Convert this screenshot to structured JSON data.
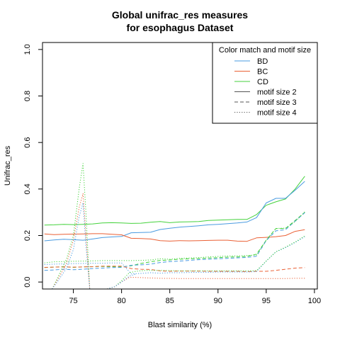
{
  "chart_data": {
    "type": "line",
    "title": [
      "Global unifrac_res measures",
      "for esophagus Dataset"
    ],
    "xlabel": "Blast similarity (%)",
    "ylabel": "Unifrac_res",
    "xlim": [
      71.8,
      100.3
    ],
    "ylim": [
      -0.03,
      1.03
    ],
    "xticks": [
      75,
      80,
      85,
      90,
      95,
      100
    ],
    "yticks": [
      0.0,
      0.2,
      0.4,
      0.6,
      0.8,
      1.0
    ],
    "xtick_labels": [
      "75",
      "80",
      "85",
      "90",
      "95",
      "100"
    ],
    "ytick_labels": [
      "0.0",
      "0.2",
      "0.4",
      "0.6",
      "0.8",
      "1.0"
    ],
    "grid": false,
    "legend": {
      "placement": "top-right",
      "title": "Color match and motif size",
      "entries": [
        {
          "label": "BD",
          "color": "#4a9be0",
          "dash": "solid"
        },
        {
          "label": "BC",
          "color": "#ea6035",
          "dash": "solid"
        },
        {
          "label": "CD",
          "color": "#44d23c",
          "dash": "solid"
        },
        {
          "label": "motif size 2",
          "color": "#555555",
          "dash": "solid"
        },
        {
          "label": "motif size 3",
          "color": "#555555",
          "dash": "dashed"
        },
        {
          "label": "motif size 4",
          "color": "#555555",
          "dash": "dotted"
        }
      ]
    },
    "series": [
      {
        "color": "#44d23c",
        "dash": "solid",
        "x": [
          72,
          73,
          74,
          75,
          76,
          77,
          78,
          79,
          80,
          81,
          82,
          83,
          84,
          85,
          86,
          87,
          88,
          89,
          90,
          91,
          92,
          93,
          94,
          95,
          96,
          97,
          98,
          99
        ],
        "values": [
          0.245,
          0.246,
          0.248,
          0.247,
          0.248,
          0.25,
          0.254,
          0.255,
          0.254,
          0.252,
          0.253,
          0.257,
          0.26,
          0.255,
          0.258,
          0.259,
          0.26,
          0.265,
          0.266,
          0.268,
          0.269,
          0.269,
          0.29,
          0.33,
          0.345,
          0.357,
          0.4,
          0.455
        ]
      },
      {
        "color": "#4a9be0",
        "dash": "solid",
        "x": [
          72,
          73,
          74,
          75,
          76,
          77,
          78,
          79,
          80,
          81,
          82,
          83,
          84,
          85,
          86,
          87,
          88,
          89,
          90,
          91,
          92,
          93,
          94,
          95,
          96,
          97,
          98,
          99
        ],
        "values": [
          0.177,
          0.181,
          0.184,
          0.182,
          0.18,
          0.185,
          0.191,
          0.194,
          0.196,
          0.212,
          0.213,
          0.214,
          0.226,
          0.231,
          0.236,
          0.239,
          0.242,
          0.246,
          0.248,
          0.251,
          0.254,
          0.258,
          0.277,
          0.34,
          0.36,
          0.36,
          0.395,
          0.433
        ]
      },
      {
        "color": "#ea6035",
        "dash": "solid",
        "x": [
          72,
          73,
          74,
          75,
          76,
          77,
          78,
          79,
          80,
          81,
          82,
          83,
          84,
          85,
          86,
          87,
          88,
          89,
          90,
          91,
          92,
          93,
          94,
          95,
          96,
          97,
          98,
          99
        ],
        "values": [
          0.207,
          0.204,
          0.205,
          0.206,
          0.207,
          0.208,
          0.208,
          0.205,
          0.203,
          0.188,
          0.187,
          0.185,
          0.178,
          0.176,
          0.178,
          0.177,
          0.178,
          0.179,
          0.18,
          0.18,
          0.176,
          0.175,
          0.19,
          0.192,
          0.195,
          0.2,
          0.218,
          0.225
        ]
      },
      {
        "color": "#44d23c",
        "dash": "dashed",
        "x": [
          72,
          73,
          74,
          75,
          76,
          77,
          78,
          79,
          80,
          81,
          82,
          83,
          84,
          85,
          86,
          87,
          88,
          89,
          90,
          91,
          92,
          93,
          94,
          95,
          96,
          97,
          98,
          99
        ],
        "values": [
          0.062,
          0.064,
          0.066,
          0.063,
          0.065,
          0.066,
          0.067,
          0.066,
          0.065,
          0.07,
          0.08,
          0.087,
          0.093,
          0.095,
          0.098,
          0.1,
          0.101,
          0.103,
          0.105,
          0.107,
          0.108,
          0.11,
          0.12,
          0.18,
          0.23,
          0.23,
          0.265,
          0.3
        ]
      },
      {
        "color": "#4a9be0",
        "dash": "dashed",
        "x": [
          72,
          73,
          74,
          75,
          76,
          77,
          78,
          79,
          80,
          81,
          82,
          83,
          84,
          85,
          86,
          87,
          88,
          89,
          90,
          91,
          92,
          93,
          94,
          95,
          96,
          97,
          98,
          99
        ],
        "values": [
          0.05,
          0.052,
          0.055,
          0.053,
          0.055,
          0.058,
          0.06,
          0.062,
          0.063,
          0.072,
          0.074,
          0.077,
          0.084,
          0.088,
          0.09,
          0.093,
          0.096,
          0.098,
          0.1,
          0.102,
          0.104,
          0.106,
          0.111,
          0.178,
          0.22,
          0.225,
          0.262,
          0.298
        ]
      },
      {
        "color": "#ea6035",
        "dash": "dashed",
        "x": [
          72,
          73,
          74,
          75,
          76,
          77,
          78,
          79,
          80,
          81,
          82,
          83,
          84,
          85,
          86,
          87,
          88,
          89,
          90,
          91,
          92,
          93,
          94,
          95,
          96,
          97,
          98,
          99
        ],
        "values": [
          0.063,
          0.064,
          0.065,
          0.064,
          0.065,
          0.066,
          0.068,
          0.068,
          0.068,
          0.058,
          0.055,
          0.054,
          0.048,
          0.046,
          0.047,
          0.047,
          0.047,
          0.046,
          0.046,
          0.046,
          0.046,
          0.045,
          0.046,
          0.046,
          0.05,
          0.055,
          0.06,
          0.062
        ]
      },
      {
        "color": "#44d23c",
        "dash": "dotted",
        "x": [
          72,
          73,
          74,
          75,
          76,
          77,
          78,
          79,
          80,
          81,
          82,
          83,
          84,
          85,
          86,
          87,
          88,
          89,
          90,
          91,
          92,
          93,
          94,
          95,
          96,
          97,
          98,
          99
        ],
        "values": [
          0.082,
          0.087,
          0.088,
          0.089,
          0.09,
          0.091,
          0.092,
          0.092,
          0.092,
          0.092,
          0.093,
          0.095,
          0.1,
          0.098,
          0.102,
          0.103,
          0.105,
          0.108,
          0.11,
          0.112,
          0.113,
          0.114,
          0.116,
          0.18,
          0.23,
          0.232,
          0.26,
          0.302
        ]
      },
      {
        "color": "#4a9be0",
        "dash": "dotted",
        "x": [
          72,
          73,
          74,
          75,
          76,
          77,
          78,
          79,
          80,
          81,
          82,
          83,
          84,
          85,
          86,
          87,
          88,
          89,
          90,
          91,
          92,
          93,
          94,
          95,
          96,
          97,
          98,
          99
        ],
        "values": [
          0.075,
          0.077,
          0.078,
          0.079,
          0.08,
          0.081,
          0.081,
          0.082,
          0.082,
          0.035,
          0.037,
          0.04,
          0.038,
          0.04,
          0.04,
          0.041,
          0.042,
          0.042,
          0.043,
          0.043,
          0.043,
          0.043,
          0.045,
          0.09,
          0.13,
          0.148,
          0.17,
          0.195
        ]
      },
      {
        "color": "#44d23c",
        "dash": "dotted",
        "x": [
          72.8,
          73.5,
          74.3,
          75.0,
          75.6,
          76.0,
          76.3,
          76.7
        ],
        "values": [
          -0.03,
          0.03,
          0.1,
          0.2,
          0.4,
          0.51,
          0.3,
          -0.03
        ]
      },
      {
        "color": "#ea6035",
        "dash": "dotted",
        "x": [
          72.8,
          73.5,
          74.3,
          75.0,
          75.6,
          76.0,
          76.3,
          76.7
        ],
        "values": [
          -0.03,
          0.02,
          0.08,
          0.18,
          0.32,
          0.38,
          0.2,
          -0.03
        ]
      },
      {
        "color": "#4a9be0",
        "dash": "dotted",
        "x": [
          72.8,
          73.5,
          74.3,
          75.0,
          75.6,
          76.0,
          76.3,
          76.7
        ],
        "values": [
          -0.03,
          0.01,
          0.06,
          0.14,
          0.28,
          0.34,
          0.16,
          -0.03
        ]
      },
      {
        "color": "#44d23c",
        "dash": "dotted",
        "x": [
          78.5,
          79.3,
          80.0,
          80.8,
          81.5,
          82.5,
          84,
          86,
          88,
          90,
          92,
          93,
          94,
          95,
          96,
          97,
          98,
          99
        ],
        "values": [
          -0.03,
          -0.02,
          0.005,
          0.04,
          0.046,
          0.05,
          0.05,
          0.048,
          0.048,
          0.048,
          0.048,
          0.048,
          0.049,
          0.09,
          0.13,
          0.15,
          0.172,
          0.198
        ]
      },
      {
        "color": "#ea6035",
        "dash": "dotted",
        "x": [
          78.5,
          79.3,
          80.0,
          80.8,
          81.5,
          82.5,
          84,
          86,
          88,
          90,
          92,
          93,
          94,
          95,
          96,
          97,
          98,
          99
        ],
        "values": [
          -0.03,
          -0.02,
          0.0,
          0.02,
          0.02,
          0.018,
          0.016,
          0.015,
          0.015,
          0.015,
          0.015,
          0.015,
          0.015,
          0.015,
          0.015,
          0.015,
          0.016,
          0.016
        ]
      },
      {
        "color": "#4a9be0",
        "dash": "dotted",
        "x": [
          78.5,
          79.3,
          80.0,
          80.8,
          81.5
        ],
        "values": [
          -0.03,
          -0.02,
          0.0,
          0.025,
          0.035
        ]
      }
    ]
  }
}
